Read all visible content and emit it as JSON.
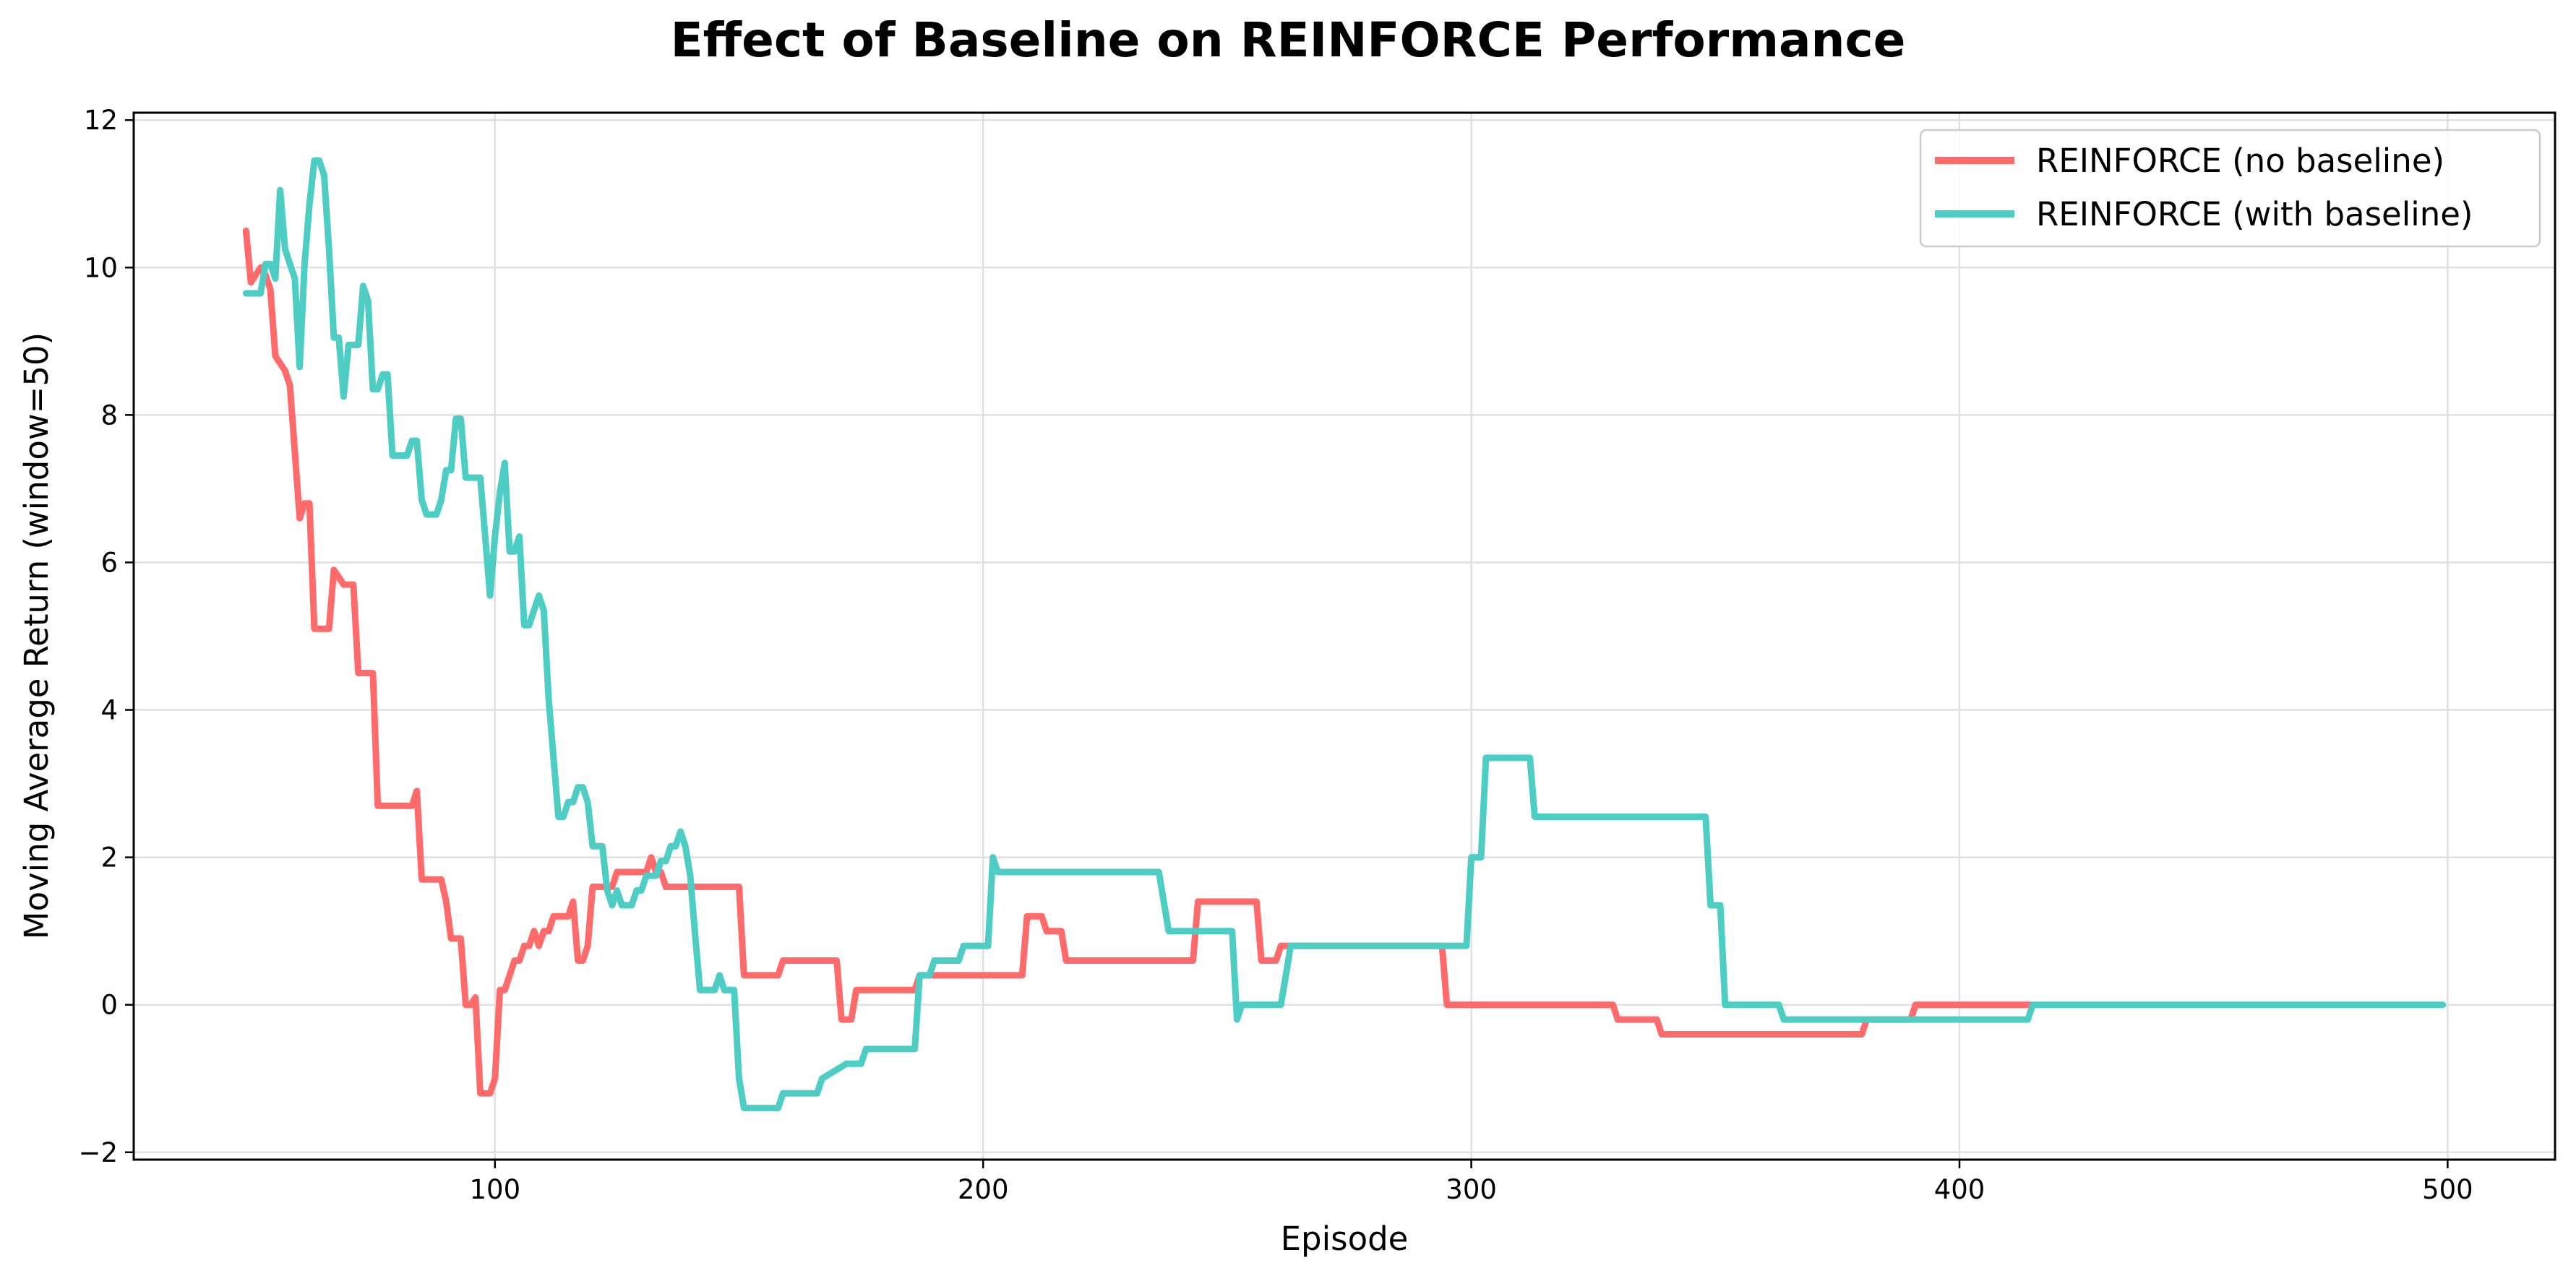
{
  "chart_data": {
    "type": "line",
    "title": "Effect of Baseline on REINFORCE Performance",
    "xlabel": "Episode",
    "ylabel": "Moving Average Return (window=50)",
    "xlim": [
      26,
      522
    ],
    "ylim": [
      -2.1,
      12.1
    ],
    "xticks": [
      100,
      200,
      300,
      400,
      500
    ],
    "yticks": [
      -2,
      0,
      2,
      4,
      6,
      8,
      10,
      12
    ],
    "ytick_labels": [
      "−2",
      "0",
      "2",
      "4",
      "6",
      "8",
      "10",
      "12"
    ],
    "grid": true,
    "legend": "top-right",
    "series": [
      {
        "name": "REINFORCE (no baseline)",
        "color": "#ff6b6b",
        "x": [
          49,
          50,
          51,
          52,
          53,
          54,
          55,
          56,
          57,
          58,
          59,
          60,
          61,
          62,
          63,
          64,
          65,
          66,
          67,
          68,
          69,
          70,
          71,
          72,
          73,
          74,
          75,
          76,
          77,
          78,
          79,
          80,
          81,
          82,
          83,
          84,
          85,
          86,
          87,
          88,
          89,
          90,
          91,
          92,
          93,
          94,
          95,
          96,
          97,
          98,
          99,
          100,
          101,
          102,
          103,
          104,
          105,
          106,
          107,
          108,
          109,
          110,
          111,
          112,
          113,
          114,
          115,
          116,
          117,
          118,
          119,
          120,
          121,
          122,
          123,
          124,
          125,
          126,
          127,
          128,
          129,
          130,
          131,
          132,
          133,
          134,
          135,
          136,
          137,
          138,
          150,
          151,
          158,
          159,
          170,
          171,
          173,
          174,
          186,
          187,
          208,
          209,
          212,
          213,
          216,
          217,
          223,
          224,
          243,
          244,
          245,
          246,
          256,
          257,
          260,
          261,
          294,
          295,
          329,
          330,
          331,
          332,
          338,
          339,
          340,
          341,
          380,
          381,
          388,
          389,
          390,
          391,
          415
        ],
        "y": [
          10.5,
          9.8,
          9.9,
          10.0,
          9.9,
          9.7,
          8.8,
          8.7,
          8.6,
          8.4,
          7.5,
          6.6,
          6.8,
          6.8,
          5.1,
          5.1,
          5.1,
          5.1,
          5.9,
          5.8,
          5.7,
          5.7,
          5.7,
          4.5,
          4.5,
          4.5,
          4.5,
          2.7,
          2.7,
          2.7,
          2.7,
          2.7,
          2.7,
          2.7,
          2.7,
          2.9,
          1.7,
          1.7,
          1.7,
          1.7,
          1.7,
          1.4,
          0.9,
          0.9,
          0.9,
          0.0,
          0.0,
          0.1,
          -1.2,
          -1.2,
          -1.2,
          -1.0,
          0.2,
          0.2,
          0.4,
          0.6,
          0.6,
          0.8,
          0.8,
          1.0,
          0.8,
          1.0,
          1.0,
          1.2,
          1.2,
          1.2,
          1.2,
          1.4,
          0.6,
          0.6,
          0.8,
          1.6,
          1.6,
          1.6,
          1.6,
          1.6,
          1.8,
          1.8,
          1.8,
          1.8,
          1.8,
          1.8,
          1.8,
          2.0,
          1.8,
          1.8,
          1.6,
          1.6,
          1.6,
          1.6,
          1.6,
          0.4,
          0.4,
          0.6,
          0.6,
          -0.2,
          -0.2,
          0.2,
          0.2,
          0.4,
          0.4,
          1.2,
          1.2,
          1.0,
          1.0,
          0.6,
          0.6,
          0.6,
          0.6,
          1.4,
          1.4,
          1.4,
          1.4,
          0.6,
          0.6,
          0.8,
          0.8,
          0.0,
          0.0,
          -0.2,
          -0.2,
          -0.2,
          -0.2,
          -0.4,
          -0.4,
          -0.4,
          -0.4,
          -0.2,
          -0.2,
          -0.2,
          -0.2,
          0.0,
          0.0
        ]
      },
      {
        "name": "REINFORCE (with baseline)",
        "color": "#4ecdc4",
        "x": [
          49,
          50,
          51,
          52,
          53,
          54,
          55,
          56,
          57,
          58,
          59,
          60,
          61,
          62,
          63,
          64,
          65,
          66,
          67,
          68,
          69,
          70,
          71,
          72,
          73,
          74,
          75,
          76,
          77,
          78,
          79,
          80,
          81,
          82,
          83,
          84,
          85,
          86,
          87,
          88,
          89,
          90,
          91,
          92,
          93,
          94,
          95,
          96,
          97,
          98,
          99,
          100,
          101,
          102,
          103,
          104,
          105,
          106,
          107,
          108,
          109,
          110,
          111,
          112,
          113,
          114,
          115,
          116,
          117,
          118,
          119,
          120,
          121,
          122,
          123,
          124,
          125,
          126,
          127,
          128,
          129,
          130,
          131,
          132,
          133,
          134,
          135,
          136,
          137,
          138,
          139,
          140,
          141,
          142,
          143,
          144,
          145,
          146,
          147,
          148,
          149,
          150,
          151,
          158,
          159,
          166,
          167,
          172,
          173,
          175,
          176,
          186,
          187,
          189,
          190,
          195,
          196,
          201,
          202,
          203,
          236,
          237,
          238,
          239,
          251,
          252,
          253,
          254,
          261,
          262,
          263,
          264,
          299,
          300,
          302,
          303,
          312,
          313,
          348,
          349,
          351,
          352,
          363,
          364,
          365,
          366,
          414,
          415,
          416,
          499
        ],
        "y": [
          9.65,
          9.65,
          9.65,
          9.65,
          10.05,
          10.05,
          9.85,
          11.05,
          10.25,
          10.05,
          9.85,
          8.65,
          10.05,
          10.85,
          11.45,
          11.45,
          11.25,
          10.25,
          9.05,
          9.05,
          8.25,
          8.95,
          8.95,
          8.95,
          9.75,
          9.55,
          8.35,
          8.35,
          8.55,
          8.55,
          7.45,
          7.45,
          7.45,
          7.45,
          7.65,
          7.65,
          6.85,
          6.65,
          6.65,
          6.65,
          6.85,
          7.25,
          7.25,
          7.95,
          7.95,
          7.15,
          7.15,
          7.15,
          7.15,
          6.35,
          5.55,
          6.35,
          6.95,
          7.35,
          6.15,
          6.15,
          6.35,
          5.15,
          5.15,
          5.35,
          5.55,
          5.35,
          4.15,
          3.35,
          2.55,
          2.55,
          2.75,
          2.75,
          2.95,
          2.95,
          2.75,
          2.15,
          2.15,
          2.15,
          1.55,
          1.35,
          1.55,
          1.35,
          1.35,
          1.35,
          1.55,
          1.55,
          1.75,
          1.75,
          1.75,
          1.95,
          1.95,
          2.15,
          2.15,
          2.35,
          2.15,
          1.75,
          0.95,
          0.2,
          0.2,
          0.2,
          0.2,
          0.4,
          0.2,
          0.2,
          0.2,
          -1.0,
          -1.4,
          -1.4,
          -1.2,
          -1.2,
          -1.0,
          -0.8,
          -0.8,
          -0.8,
          -0.6,
          -0.6,
          0.4,
          0.4,
          0.6,
          0.6,
          0.8,
          0.8,
          2.0,
          1.8,
          1.8,
          1.4,
          1.0,
          1.0,
          1.0,
          -0.2,
          0.0,
          0.0,
          0.0,
          0.4,
          0.8,
          0.8,
          0.8,
          2.0,
          2.0,
          3.35,
          3.35,
          2.55,
          2.55,
          1.35,
          1.35,
          0.0,
          0.0,
          -0.2,
          -0.2,
          -0.2,
          -0.2,
          0.0,
          0.0,
          0.0
        ]
      }
    ]
  }
}
